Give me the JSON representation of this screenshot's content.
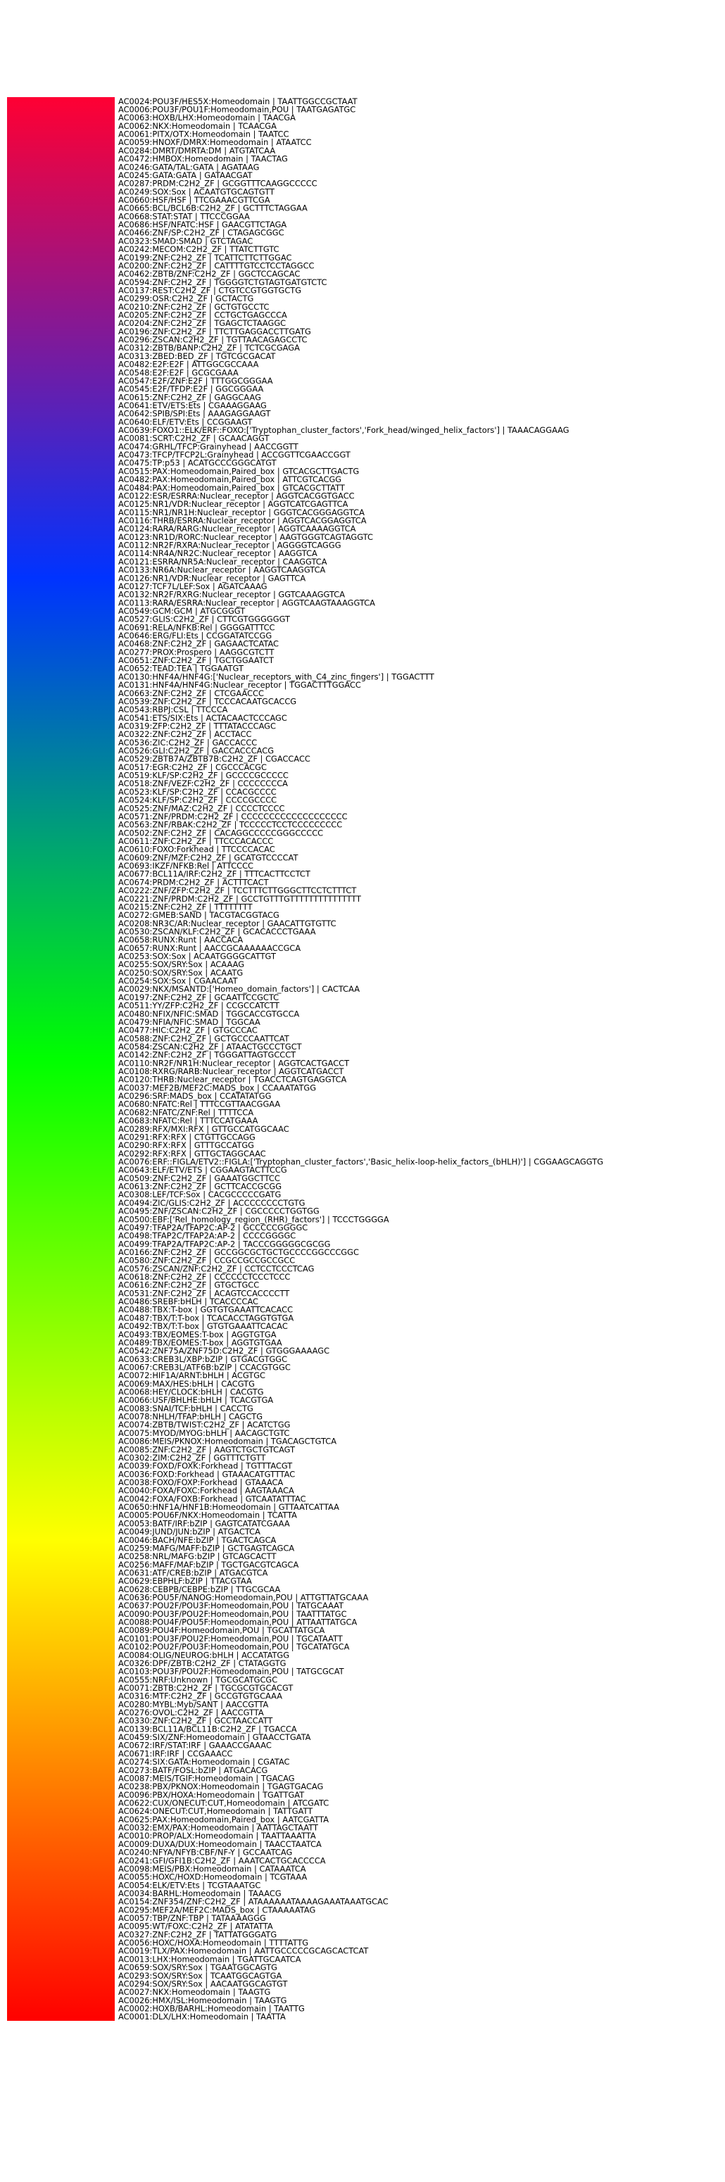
{
  "chart_data": {
    "type": "heatmap",
    "title": "",
    "xlabel": "",
    "ylabel": "",
    "colormap": [
      "#ff0033",
      "#0033ff",
      "#00ff00",
      "#ffff00",
      "#ff0000"
    ],
    "rows": [
      "AC0024:POU3F/HES5X:Homeodomain | TAATTGGCCGCTAAT",
      "AC0006:POU3F/POU1F:Homeodomain,POU | TAATGAGATGC",
      "AC0063:HOXB/LHX:Homeodomain | TAACGA",
      "AC0062:NKX:Homeodomain | TCAACGA",
      "AC0061:PITX/OTX:Homeodomain | TAATCC",
      "AC0059:HNOXF/DMRX:Homeodomain | ATAATCC",
      "AC0284:DMRT/DMRTA:DM | ATGTATCAA",
      "AC0472:HMBOX:Homeodomain | TAACTAG",
      "AC0246:GATA/TAL:GATA | AGATAAG",
      "AC0245:GATA:GATA | GATAACGAT",
      "AC0287:PRDM:C2H2_ZF | GCGGTTTCAAGGCCCCC",
      "AC0249:SOX:Sox | ACAATGTGCAGTGTT",
      "AC0660:HSF/HSF | TTCGAAACGTTCGA",
      "AC0665:BCL/BCL6B:C2H2_ZF | GCTTTCTAGGAA",
      "AC0668:STAT:STAT | TTCCCGGAA",
      "AC0686:HSF/NFATC:HSF | GAACGTTCTAGA",
      "AC0466:ZNF/SP:C2H2_ZF | CTAGAGCGGC",
      "AC0323:SMAD:SMAD | GTCTAGAC",
      "AC0242:MECOM:C2H2_ZF | TTATCTTGTC",
      "AC0199:ZNF:C2H2_ZF | TCATTCTTCTTGGAC",
      "AC0200:ZNF:C2H2_ZF | CATTTTGTCCTCCTAGGCC",
      "AC0462:ZBTB/ZNF:C2H2_ZF | GGCTCCAGCAC",
      "AC0594:ZNF:C2H2_ZF | TGGGGTCTGTAGTGATGTCTC",
      "AC0137:REST:C2H2_ZF | CTGTCCGTGGTGCTG",
      "AC0299:OSR:C2H2_ZF | GCTACTG",
      "AC0210:ZNF:C2H2_ZF | GCTGTGCCTC",
      "AC0205:ZNF:C2H2_ZF | CCTGCTGAGCCCA",
      "AC0204:ZNF:C2H2_ZF | TGAGCTCTAAGGC",
      "AC0196:ZNF:C2H2_ZF | TTCTTGAGGACCTTGATG",
      "AC0296:ZSCAN:C2H2_ZF | TGTTAACAGAGCCTC",
      "AC0312:ZBTB/BANP:C2H2_ZF | TCTCGCGAGA",
      "AC0313:ZBED:BED_ZF | TGTCGCGACAT",
      "AC0482:E2F:E2F | ATTGGCGCCAAA",
      "AC0548:E2F:E2F | GCGCGAAA",
      "AC0547:E2F/ZNF:E2F | TTTGGCGGGAA",
      "AC0545:E2F/TFDP:E2F | GGCGGGAA",
      "AC0615:ZNF:C2H2_ZF | GAGGCAAG",
      "AC0641:ETV/ETS:Ets | CGAAAGGAAG",
      "AC0642:SPIB/SPI:Ets | AAAGAGGAAGT",
      "AC0640:ELF/ETV:Ets | CCGGAAGT",
      "AC0639:FOXO1::ELK/ERF::FOXO:['Tryptophan_cluster_factors','Fork_head/winged_helix_factors'] | TAAACAGGAAG",
      "AC0081:SCRT:C2H2_ZF | GCAACAGGT",
      "AC0474:GRHL/TFCP:Grainyhead | AACCGGTT",
      "AC0473:TFCP/TFCP2L:Grainyhead | ACCGGTTCGAACCGGT",
      "AC0475:TP:p53 | ACATGCCCGGGCATGT",
      "AC0515:PAX:Homeodomain,Paired_box | GTCACGCTTGACTG",
      "AC0482:PAX:Homeodomain,Paired_box | ATTCGTCACGG",
      "AC0484:PAX:Homeodomain,Paired_box | GTCACGCTTATT",
      "AC0122:ESR/ESRRA:Nuclear_receptor | AGGTCACGGTGACC",
      "AC0125:NR1/VDR:Nuclear_receptor | AGGTCATCGAGTTCA",
      "AC0115:NR1/NR1H:Nuclear_receptor | GGGTCACGGGAGGTCA",
      "AC0116:THRB/ESRRA:Nuclear_receptor | AGGTCACGGAGGTCA",
      "AC0124:RARA/RARG:Nuclear_receptor | AGGTCAAAAGGTCA",
      "AC0123:NR1D/RORC:Nuclear_receptor | AAGTGGGTCAGTAGGTC",
      "AC0112:NR2F/RXRA:Nuclear_receptor | AGGGGTCAGGG",
      "AC0114:NR4A/NR2C:Nuclear_receptor | AAGGTCA",
      "AC0121:ESRRA/NR5A:Nuclear_receptor | CAAGGTCA",
      "AC0133:NR6A:Nuclear_receptor | AAGGTCAAGGTCA",
      "AC0126:NR1/VDR:Nuclear_receptor | GAGTTCA",
      "AC0127:TCF7L/LEF:Sox | AGATCAAAG",
      "AC0132:NR2F/RXRG:Nuclear_receptor | GGTCAAAGGTCA",
      "AC0113:RARA/ESRRA:Nuclear_receptor | AGGTCAAGTAAAGGTCA",
      "AC0549:GCM:GCM | ATGCGGGT",
      "AC0527:GLIS:C2H2_ZF | CTTCGTGGGGGGT",
      "AC0691:RELA/NFKB:Rel | GGGGATTTCC",
      "AC0646:ERG/FLI:Ets | CCGGATATCCGG",
      "AC0468:ZNF:C2H2_ZF | GAGAACTCATAC",
      "AC0277:PROX:Prospero | AAGGCGTCTT",
      "AC0651:ZNF:C2H2_ZF | TGCTGGAATCT",
      "AC0652:TEAD:TEA | TGGAATGT",
      "AC0130:HNF4A/HNF4G:['Nuclear_receptors_with_C4_zinc_fingers'] | TGGACTTT",
      "AC0131:HNF4A/HNF4G:Nuclear_receptor | TGGACTTTGGACC",
      "AC0663:ZNF:C2H2_ZF | CTCGAACCC",
      "AC0539:ZNF:C2H2_ZF | TCCCACAATGCACCG",
      "AC0543:RBPJ:CSL | TTCCCA",
      "AC0541:ETS/SIX:Ets | ACTACAACTCCCAGC",
      "AC0319:ZFP:C2H2_ZF | TTTATACCCAGC",
      "AC0322:ZNF:C2H2_ZF | ACCTACC",
      "AC0536:ZIC:C2H2_ZF | GACCACCC",
      "AC0526:GLI:C2H2_ZF | GACCACCCACG",
      "AC0529:ZBTB7A/ZBTB7B:C2H2_ZF | CGACCACC",
      "AC0517:EGR:C2H2_ZF | CGCCCACGC",
      "AC0519:KLF/SP:C2H2_ZF | GCCCCGCCCCC",
      "AC0518:ZNF/VEZF:C2H2_ZF | CCCCCCCCA",
      "AC0523:KLF/SP:C2H2_ZF | CCACGCCCC",
      "AC0524:KLF/SP:C2H2_ZF | CCCCGCCCC",
      "AC0525:ZNF/MAZ:C2H2_ZF | CCCCTCCCC",
      "AC0571:ZNF/PRDM:C2H2_ZF | CCCCCCCCCCCCCCCCCCC",
      "AC0563:ZNF/RBAK:C2H2_ZF | TCCCCCTCCTCCCCCCCCC",
      "AC0502:ZNF:C2H2_ZF | CACAGGCCCCCGGGCCCCC",
      "AC0611:ZNF:C2H2_ZF | TTCCCACACCC",
      "AC0610:FOXO:Forkhead | TTCCCCACAC",
      "AC0609:ZNF/MZF:C2H2_ZF | GCATGTCCCCAT",
      "AC0693:IKZF/NFKB:Rel | ATTCCCC",
      "AC0677:BCL11A/IRF:C2H2_ZF | TTTCACTTCCTCT",
      "AC0674:PRDM:C2H2_ZF | ACTTTCACT",
      "AC0222:ZNF/ZFP:C2H2_ZF | TCCTTTCTTGGGCTTCCTCTTTCT",
      "AC0221:ZNF/PRDM:C2H2_ZF | GCCTGTTTGTTTTTTTTTTTTTTT",
      "AC0215:ZNF:C2H2_ZF | TTTTTTTT",
      "AC0272:GMEB:SAND | TACGTACGGTACG",
      "AC0208:NR3C/AR:Nuclear_receptor | GAACATTGTGTTC",
      "AC0530:ZSCAN/KLF:C2H2_ZF | GCACACCCTGAAA",
      "AC0658:RUNX:Runt | AACCACA",
      "AC0657:RUNX:Runt | AACCGCAAAAAACCGCA",
      "AC0253:SOX:Sox | ACAATGGGGCATTGT",
      "AC0255:SOX/SRY:Sox | ACAAAG",
      "AC0250:SOX/SRY:Sox | ACAATG",
      "AC0254:SOX:Sox | CGAACAAT",
      "AC0029:NKX/MSANTD:['Homeo_domain_factors'] | CACTCAA",
      "AC0197:ZNF:C2H2_ZF | GCAATTCCGCTC",
      "AC0511:YY/ZFP:C2H2_ZF | CCGCCATCTT",
      "AC0480:NFIX/NFIC:SMAD | TGGCACCGTGCCA",
      "AC0479:NFIA/NFIC:SMAD | TGGCAA",
      "AC0477:HIC:C2H2_ZF | GTGCCCAC",
      "AC0588:ZNF:C2H2_ZF | GCTGCCCAATTCAT",
      "AC0584:ZSCAN:C2H2_ZF | ATAACTGCCCTGCT",
      "AC0142:ZNF:C2H2_ZF | TGGGATTAGTGCCCT",
      "AC0110:NR2F/NR1H:Nuclear_receptor | AGGTCACTGACCT",
      "AC0108:RXRG/RARB:Nuclear_receptor | AGGTCATGACCT",
      "AC0120:THRB:Nuclear_receptor | TGACCTCAGTGAGGTCA",
      "AC0037:MEF2B/MEF2C:MADS_box | CCAAATATGG",
      "AC0296:SRF:MADS_box | CCATATATGG",
      "AC0680:NFATC:Rel | TTTCCGTTAACGGAA",
      "AC0682:NFATC/ZNF:Rel | TTTTCCA",
      "AC0683:NFATC:Rel | TTTCCATGAAA",
      "AC0289:RFX/MXI:RFX | GTTGCCATGGCAAC",
      "AC0291:RFX:RFX | CTGTTGCCAGG",
      "AC0290:RFX:RFX | GTTTGCCATGG",
      "AC0292:RFX:RFX | GTTGCTAGGCAAC",
      "AC0076:ERF::FIGLA/ETV2::FIGLA:['Tryptophan_cluster_factors','Basic_helix-loop-helix_factors_(bHLH)'] | CGGAAGCAGGTG",
      "AC0643:ELF/ETV/ETS | CGGAAGTACTTCCG",
      "AC0509:ZNF:C2H2_ZF | GAAATGGCTTCC",
      "AC0613:ZNF:C2H2_ZF | GCTTCACCGCGG",
      "AC0308:LEF/TCF:Sox | CACGCCCCCGATG",
      "AC0494:ZIC/GLIS:C2H2_ZF | ACCCCCCCCTGTG",
      "AC0495:ZNF/ZSCAN:C2H2_ZF | CGCCCCCTGGTGG",
      "AC0500:EBF:['Rel_homology_region_(RHR)_factors'] | TCCCTGGGGA",
      "AC0497:TFAP2A/TFAP2C:AP-2 | GCCCCCGGGGC",
      "AC0498:TFAP2C/TFAP2A:AP-2 | CCCCGGGGC",
      "AC0499:TFAP2A/TFAP2C:AP-2 | TACCCGGGGGCGCGG",
      "AC0166:ZNF:C2H2_ZF | GCCGGCGCTGCTGCCCCGGCCCGGC",
      "AC0580:ZNF:C2H2_ZF | CCGCCGCCGCCGCC",
      "AC0576:ZSCAN/ZNF:C2H2_ZF | CCTCCTCCCTCAG",
      "AC0618:ZNF:C2H2_ZF | CCCCCCTCCCTCCC",
      "AC0616:ZNF:C2H2_ZF | GTGCTGCC",
      "AC0531:ZNF:C2H2_ZF | ACAGTCCACCCCTT",
      "AC0486:SREBF:bHLH | TCACCCCAC",
      "AC0488:TBX:T-box | GGTGTGAAATTCACACC",
      "AC0487:TBX/T:T-box | TCACACCTAGGTGTGA",
      "AC0492:TBX/T:T-box | GTGTGAAATTCACAC",
      "AC0493:TBX/EOMES:T-box | AGGTGTGA",
      "AC0489:TBX/EOMES:T-box | AGGTGTGAA",
      "AC0542:ZNF75A/ZNF75D:C2H2_ZF | GTGGGAAAAGC",
      "AC0633:CREB3L/XBP:bZIP | GTGACGTGGC",
      "AC0067:CREB3L/ATF6B:bZIP | CCACGTGGC",
      "AC0072:HIF1A/ARNT:bHLH | ACGTGC",
      "AC0069:MAX/HES:bHLH | CACGTG",
      "AC0068:HEY/CLOCK:bHLH | CACGTG",
      "AC0066:USF/BHLHE:bHLH | TCACGTGA",
      "AC0083:SNAI/TCF:bHLH | CACCTG",
      "AC0078:NHLH/TFAP:bHLH | CAGCTG",
      "AC0074:ZBTB/TWIST:C2H2_ZF | ACATCTGG",
      "AC0075:MYOD/MYOG:bHLH | AACAGCTGTC",
      "AC0086:MEIS/PKNOX:Homeodomain | TGACAGCTGTCA",
      "AC0085:ZNF:C2H2_ZF | AAGTCTGCTGTCAGT",
      "AC0302:ZIM:C2H2_ZF | GGTTTCTGTT",
      "AC0039:FOXD/FOXK:Forkhead | TGTTTACGT",
      "AC0036:FOXD:Forkhead | GTAAACATGTTTAC",
      "AC0038:FOXO/FOXP:Forkhead | GTAAACA",
      "AC0040:FOXA/FOXC:Forkhead | AAGTAAACA",
      "AC0042:FOXA/FOXB:Forkhead | GTCAATATTTAC",
      "AC0650:HNF1A/HNF1B:Homeodomain | GTTAATCATTAA",
      "AC0005:POU6F/NKX:Homeodomain | TCATTA",
      "AC0053:BATF/IRF:bZIP | GAGTCATATCGAAA",
      "AC0049:JUND/JUN:bZIP | ATGACTCA",
      "AC0046:BACH/NFE:bZIP | TGACTCAGCA",
      "AC0259:MAFG/MAFF:bZIP | GCTGAGTCAGCA",
      "AC0258:NRL/MAFG:bZIP | GTCAGCACTT",
      "AC0256:MAFF/MAF:bZIP | TGCTGACGTCAGCA",
      "AC0631:ATF/CREB:bZIP | ATGACGTCA",
      "AC0629:EBPHLF:bZIP | TTACGTAA",
      "AC0628:CEBPB/CEBPE:bZIP | TTGCGCAA",
      "AC0636:POU5F/NANOG:Homeodomain,POU | ATTGTTATGCAAA",
      "AC0637:POU2F/POU3F:Homeodomain,POU | TATGCAAAT",
      "AC0090:POU3F/POU2F:Homeodomain,POU | TAATTTATGC",
      "AC0088:POU4F/POU5F:Homeodomain,POU | ATTAATTATGCA",
      "AC0089:POU4F:Homeodomain,POU | TGCATTATGCA",
      "AC0101:POU3F/POU2F:Homeodomain,POU | TGCATAATT",
      "AC0102:POU2F/POU3F:Homeodomain,POU | TGCATATGCA",
      "AC0084:OLIG/NEUROG:bHLH | ACCATATGG",
      "AC0326:DPF/ZBTB:C2H2_ZF | CTATAGGTG",
      "AC0103:POU3F/POU2F:Homeodomain,POU | TATGCGCAT",
      "AC0555:NRF:Unknown | TGCGCATGCGC",
      "AC0071:ZBTB:C2H2_ZF | TGCGCGTGCACGT",
      "AC0316:MTF:C2H2_ZF | GCCGTGTGCAAA",
      "AC0280:MYBL:Myb/SANT | AACCGTTA",
      "AC0276:OVOL:C2H2_ZF | AACCGTTA",
      "AC0330:ZNF:C2H2_ZF | GCCTAACCATT",
      "AC0139:BCL11A/BCL11B:C2H2_ZF | TGACCA",
      "AC0459:SIX/ZNF:Homeodomain | GTAACCTGATA",
      "AC0672:IRF/STAT:IRF | GAAACCGAAAC",
      "AC0671:IRF:IRF | CCGAAACC",
      "AC0274:SIX:GATA:Homeodomain | CGATAC",
      "AC0273:BATF/FOSL:bZIP | ATGACACG",
      "AC0087:MEIS/TGIF:Homeodomain | TGACAG",
      "AC0238:PBX/PKNOX:Homeodomain | TGAGTGACAG",
      "AC0096:PBX/HOXA:Homeodomain | TGATTGAT",
      "AC0622:CUX/ONECUT:CUT,Homeodomain | ATCGATC",
      "AC0624:ONECUT:CUT,Homeodomain | TATTGATT",
      "AC0625:PAX:Homeodomain,Paired_box | AATCGATTA",
      "AC0032:EMX/PAX:Homeodomain | AATTAGCTAATT",
      "AC0010:PROP/ALX:Homeodomain | TAATTAAATTA",
      "AC0009:DUXA/DUX:Homeodomain | TAACCTAATCA",
      "AC0240:NFYA/NFYB:CBF/NF-Y | GCCAATCAG",
      "AC0241:GFI/GFI1B:C2H2_ZF | AAATCACTGCACCCCA",
      "AC0098:MEIS/PBX:Homeodomain | CATAAATCA",
      "AC0055:HOXC/HOXD:Homeodomain | TCGTAAA",
      "AC0054:ELK/ETV:Ets | TCGTAAATGC",
      "AC0034:BARHL:Homeodomain | TAAACG",
      "AC0154:ZNF354/ZNF:C2H2_ZF | ATAAAAAATAAAAGAAATAAATGCAC",
      "AC0295:MEF2A/MEF2C:MADS_box | CTAAAAATAG",
      "AC0057:TBP/ZNF:TBP | TATAAAAGGG",
      "AC0095:WT/FOXC:C2H2_ZF | ATATATTA",
      "AC0327:ZNF:C2H2_ZF | TATTATGGGATG",
      "AC0056:HOXC/HOXA:Homeodomain | TTTTATTG",
      "AC0019:TLX/PAX:Homeodomain | AATTGCCCCCGCAGCACTCAT",
      "AC0013:LHX:Homeodomain | TGATTGCAATCA",
      "AC0659:SOX/SRY:Sox | TGAATGGCAGTG",
      "AC0293:SOX/SRY:Sox | TCAATGGCAGTGA",
      "AC0294:SOX/SRY:Sox | AACAATGGCAGTGT",
      "AC0027:NKX:Homeodomain | TAAGTG",
      "AC0026:HMX/ISL:Homeodomain | TAAGTG",
      "AC0002:HOXB/BARHL:Homeodomain | TAATTG",
      "AC0001:DLX/LHX:Homeodomain | TAATTA"
    ]
  }
}
